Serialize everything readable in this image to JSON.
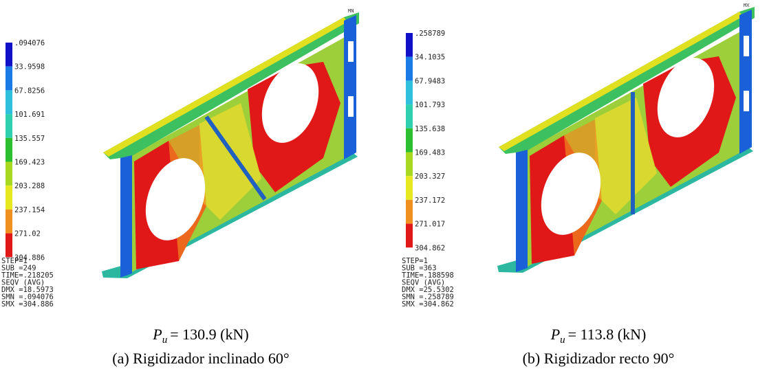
{
  "panels": [
    {
      "legend": [
        ".094076",
        "33.9598",
        "67.8256",
        "101.691",
        "135.557",
        "169.423",
        "203.288",
        "237.154",
        "271.02",
        "304.886"
      ],
      "stats": [
        "STEP=1",
        "SUB =249",
        "TIME=.218205",
        "SEQV      (AVG)",
        "DMX =18.5973",
        "SMN =.094076",
        "SMX =304.886"
      ],
      "corner_label": "MN",
      "load": {
        "symbol": "P",
        "subscript": "u",
        "text": "= 130.9 (kN)"
      },
      "caption": "(a) Rigidizador inclinado 60°"
    },
    {
      "legend": [
        ".258789",
        "34.1035",
        "67.9483",
        "101.793",
        "135.638",
        "169.483",
        "203.327",
        "237.172",
        "271.017",
        "304.862"
      ],
      "stats": [
        "STEP=1",
        "SUB =363",
        "TIME=.188598",
        "SEQV      (AVG)",
        "DMX =25.5302",
        "SMN =.258789",
        "SMX =304.862"
      ],
      "corner_label": "MX",
      "load": {
        "symbol": "P",
        "subscript": "u",
        "text": "= 113.8 (kN)"
      },
      "caption": "(b) Rigidizador recto 90°"
    }
  ]
}
